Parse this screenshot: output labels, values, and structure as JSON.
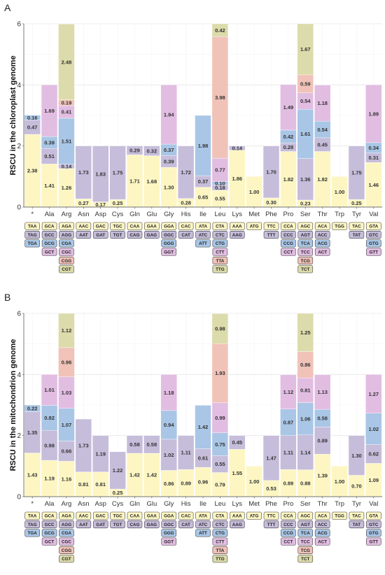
{
  "colors": [
    "#fdf6c3",
    "#c6bddb",
    "#a9c6e6",
    "#e2bde2",
    "#f0c2b8",
    "#dcdbab"
  ],
  "chart_data": [
    {
      "type": "bar",
      "panel": "A",
      "ylabel": "RSCU in the chloroplast genome",
      "ylim": [
        0,
        6
      ],
      "yticks": [
        "0",
        "2",
        "4",
        "6"
      ],
      "grid": true,
      "categories": [
        "*",
        "Ala",
        "Arg",
        "Asn",
        "Asp",
        "Cys",
        "Gln",
        "Glu",
        "Gly",
        "His",
        "Ile",
        "Leu",
        "Lys",
        "Met",
        "Phe",
        "Pro",
        "Ser",
        "Thr",
        "Trp",
        "Tyr",
        "Val"
      ],
      "stacks": [
        [
          2.38,
          0.47,
          0.16
        ],
        [
          1.41,
          0.51,
          0.39,
          1.69
        ],
        [
          1.26,
          0.14,
          1.51,
          0.41,
          0.19,
          2.48
        ],
        [
          0.27,
          1.73
        ],
        [
          0.17,
          1.83
        ],
        [
          0.25,
          1.75
        ],
        [
          1.71,
          0.29
        ],
        [
          1.68,
          0.32
        ],
        [
          1.3,
          0.39,
          0.37,
          1.94
        ],
        [
          0.28,
          1.72
        ],
        [
          0.65,
          0.37,
          1.98
        ],
        [
          0.55,
          0.18,
          0.1,
          0.77,
          3.98,
          0.42
        ],
        [
          1.86,
          0.14
        ],
        [
          1.0
        ],
        [
          0.3,
          1.7
        ],
        [
          1.82,
          0.28,
          0.42,
          1.49
        ],
        [
          0.23,
          1.36,
          1.61,
          0.54,
          0.59,
          1.67
        ],
        [
          1.82,
          0.45,
          0.54,
          1.18
        ],
        [
          1.0
        ],
        [
          0.25,
          1.75
        ],
        [
          1.46,
          0.31,
          0.34,
          1.89
        ]
      ],
      "codons": [
        [
          "TAA",
          "TAG",
          "TGA"
        ],
        [
          "GCA",
          "GCC",
          "GCG",
          "GCT"
        ],
        [
          "AGA",
          "AGG",
          "CGA",
          "CGC",
          "CGG",
          "CGT"
        ],
        [
          "AAC",
          "AAT"
        ],
        [
          "GAC",
          "GAT"
        ],
        [
          "TGC",
          "TGT"
        ],
        [
          "CAA",
          "CAG"
        ],
        [
          "GAA",
          "GAG"
        ],
        [
          "GGA",
          "GGC",
          "GGG",
          "GGT"
        ],
        [
          "CAC",
          "CAT"
        ],
        [
          "ATA",
          "ATC",
          "ATT"
        ],
        [
          "CTA",
          "CTC",
          "CTG",
          "CTT",
          "TTA",
          "TTG"
        ],
        [
          "AAA",
          "AAG"
        ],
        [
          "ATG"
        ],
        [
          "TTC",
          "TTT"
        ],
        [
          "CCA",
          "CCC",
          "CCG",
          "CCT"
        ],
        [
          "AGC",
          "AGT",
          "TCA",
          "TCC",
          "TCG",
          "TCT"
        ],
        [
          "ACA",
          "ACC",
          "ACG",
          "ACT"
        ],
        [
          "TGG"
        ],
        [
          "TAC",
          "TAT"
        ],
        [
          "GTA",
          "GTC",
          "GTG",
          "GTT"
        ]
      ]
    },
    {
      "type": "bar",
      "panel": "B",
      "ylabel": "RSCU in the mitochondrion genome",
      "ylim": [
        0,
        6
      ],
      "yticks": [
        "0",
        "2",
        "4",
        "6"
      ],
      "grid": true,
      "categories": [
        "*",
        "Ala",
        "Arg",
        "Asn",
        "Asp",
        "Cys",
        "Gln",
        "Glu",
        "Gly",
        "His",
        "Ile",
        "Leu",
        "Lys",
        "Met",
        "Phe",
        "Pro",
        "Ser",
        "Thr",
        "Trp",
        "Tyr",
        "Val"
      ],
      "stacks": [
        [
          1.43,
          1.35,
          0.22
        ],
        [
          1.19,
          0.98,
          0.82,
          1.01
        ],
        [
          1.16,
          0.66,
          1.07,
          1.03,
          0.96,
          1.12
        ],
        [
          0.81,
          1.73
        ],
        [
          0.81,
          1.19
        ],
        [
          0.25,
          1.22
        ],
        [
          1.42,
          0.58
        ],
        [
          1.42,
          0.58
        ],
        [
          0.86,
          1.02,
          0.94,
          1.18
        ],
        [
          0.89,
          1.11
        ],
        [
          0.96,
          0.61,
          1.42
        ],
        [
          0.79,
          0.55,
          0.75,
          0.99,
          1.93,
          0.98
        ],
        [
          1.55,
          0.45
        ],
        [
          1.0
        ],
        [
          0.53,
          1.47
        ],
        [
          0.89,
          1.11,
          0.87,
          1.12
        ],
        [
          0.88,
          1.14,
          1.06,
          0.81,
          0.86,
          1.25
        ],
        [
          1.39,
          0.89,
          0.58,
          1.13
        ],
        [
          1.0
        ],
        [
          0.7,
          1.3
        ],
        [
          1.09,
          0.62,
          1.02,
          1.27
        ]
      ],
      "codons": [
        [
          "TAA",
          "TAG",
          "TGA"
        ],
        [
          "GCA",
          "GCC",
          "GCG",
          "GCT"
        ],
        [
          "AGA",
          "AGG",
          "CGA",
          "CGC",
          "CGG",
          "CGT"
        ],
        [
          "AAC",
          "AAT"
        ],
        [
          "GAC",
          "GAT"
        ],
        [
          "TGC",
          "TGT"
        ],
        [
          "CAA",
          "CAG"
        ],
        [
          "GAA",
          "GAG"
        ],
        [
          "GGA",
          "GGC",
          "GGG",
          "GGT"
        ],
        [
          "CAC",
          "CAT"
        ],
        [
          "ATA",
          "ATC",
          "ATT"
        ],
        [
          "CTA",
          "CTC",
          "CTG",
          "CTT",
          "TTA",
          "TTG"
        ],
        [
          "AAA",
          "AAG"
        ],
        [
          "ATG"
        ],
        [
          "TTC",
          "TTT"
        ],
        [
          "CCA",
          "CCC",
          "CCG",
          "CCT"
        ],
        [
          "AGC",
          "AGT",
          "TCA",
          "TCC",
          "TCG",
          "TCT"
        ],
        [
          "ACA",
          "ACC",
          "ACG",
          "ACT"
        ],
        [
          "TGG"
        ],
        [
          "TAC",
          "TAT"
        ],
        [
          "GTA",
          "GTC",
          "GTG",
          "GTT"
        ]
      ]
    }
  ]
}
